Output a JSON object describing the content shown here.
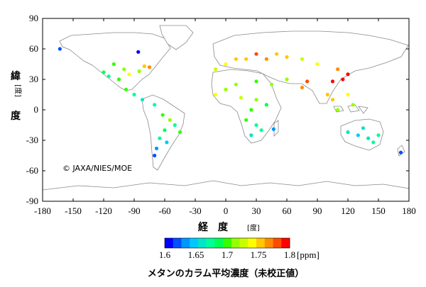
{
  "map": {
    "copyright": "© JAXA/NIES/MOE",
    "axes": {
      "x_title": "経　度",
      "x_unit": "[度]",
      "y_title_top": "緯",
      "y_unit": "[度]",
      "y_title_bottom": "度",
      "x_range": [
        -180,
        180
      ],
      "y_range": [
        -90,
        90
      ],
      "x_ticks": [
        -180,
        -150,
        -120,
        -90,
        -60,
        -30,
        0,
        30,
        60,
        90,
        120,
        150,
        180
      ],
      "y_ticks": [
        90,
        60,
        30,
        0,
        -30,
        -60,
        -90
      ]
    },
    "colorbar": {
      "ticks": [
        "1.6",
        "1.65",
        "1.7",
        "1.75",
        "1.8"
      ],
      "unit": "[ppm]",
      "min": 1.6,
      "max": 1.8,
      "colors": [
        "#0000ff",
        "#0050ff",
        "#0096ff",
        "#00c8ff",
        "#00e6c8",
        "#00ff96",
        "#00ff50",
        "#32ff00",
        "#96ff00",
        "#c8ff00",
        "#ffff00",
        "#ffc800",
        "#ff8c00",
        "#ff4b00",
        "#ff0000"
      ]
    },
    "caption": "メタンのカラム平均濃度（未校正値）"
  },
  "chart_data": {
    "type": "scatter",
    "xlabel": "経度 [度]",
    "ylabel": "緯度 [度]",
    "xlim": [
      -180,
      180
    ],
    "ylim": [
      -90,
      90
    ],
    "color_variable": "methane column-averaged concentration (ppm)",
    "points": [
      {
        "x": -163,
        "y": 60,
        "v": 1.62
      },
      {
        "x": -86,
        "y": 57,
        "v": 1.6
      },
      {
        "x": -110,
        "y": 45,
        "v": 1.7
      },
      {
        "x": -100,
        "y": 40,
        "v": 1.72
      },
      {
        "x": -95,
        "y": 35,
        "v": 1.74
      },
      {
        "x": -85,
        "y": 38,
        "v": 1.72
      },
      {
        "x": -80,
        "y": 43,
        "v": 1.76
      },
      {
        "x": -75,
        "y": 42,
        "v": 1.77
      },
      {
        "x": -120,
        "y": 37,
        "v": 1.69
      },
      {
        "x": -115,
        "y": 33,
        "v": 1.68
      },
      {
        "x": -105,
        "y": 30,
        "v": 1.7
      },
      {
        "x": -98,
        "y": 20,
        "v": 1.7
      },
      {
        "x": -90,
        "y": 15,
        "v": 1.68
      },
      {
        "x": -82,
        "y": 10,
        "v": 1.66
      },
      {
        "x": -70,
        "y": 5,
        "v": 1.67
      },
      {
        "x": -62,
        "y": -5,
        "v": 1.7
      },
      {
        "x": -55,
        "y": -10,
        "v": 1.72
      },
      {
        "x": -50,
        "y": -15,
        "v": 1.68
      },
      {
        "x": -60,
        "y": -20,
        "v": 1.69
      },
      {
        "x": -45,
        "y": -22,
        "v": 1.7
      },
      {
        "x": -65,
        "y": -28,
        "v": 1.67
      },
      {
        "x": -58,
        "y": -32,
        "v": 1.65
      },
      {
        "x": -68,
        "y": -38,
        "v": 1.64
      },
      {
        "x": -70,
        "y": -45,
        "v": 1.62
      },
      {
        "x": -10,
        "y": 40,
        "v": 1.73
      },
      {
        "x": 0,
        "y": 45,
        "v": 1.74
      },
      {
        "x": 10,
        "y": 50,
        "v": 1.76
      },
      {
        "x": 20,
        "y": 50,
        "v": 1.75
      },
      {
        "x": 30,
        "y": 55,
        "v": 1.78
      },
      {
        "x": 40,
        "y": 50,
        "v": 1.77
      },
      {
        "x": 50,
        "y": 55,
        "v": 1.76
      },
      {
        "x": 60,
        "y": 52,
        "v": 1.75
      },
      {
        "x": 75,
        "y": 50,
        "v": 1.73
      },
      {
        "x": 90,
        "y": 45,
        "v": 1.74
      },
      {
        "x": 110,
        "y": 40,
        "v": 1.77
      },
      {
        "x": 120,
        "y": 35,
        "v": 1.8
      },
      {
        "x": 115,
        "y": 30,
        "v": 1.8
      },
      {
        "x": 105,
        "y": 28,
        "v": 1.79
      },
      {
        "x": 80,
        "y": 28,
        "v": 1.78
      },
      {
        "x": 75,
        "y": 22,
        "v": 1.77
      },
      {
        "x": 60,
        "y": 30,
        "v": 1.72
      },
      {
        "x": 45,
        "y": 25,
        "v": 1.72
      },
      {
        "x": 30,
        "y": 28,
        "v": 1.7
      },
      {
        "x": 10,
        "y": 25,
        "v": 1.71
      },
      {
        "x": 0,
        "y": 20,
        "v": 1.72
      },
      {
        "x": -10,
        "y": 15,
        "v": 1.74
      },
      {
        "x": 15,
        "y": 12,
        "v": 1.73
      },
      {
        "x": 30,
        "y": 10,
        "v": 1.71
      },
      {
        "x": 40,
        "y": 5,
        "v": 1.69
      },
      {
        "x": 25,
        "y": 0,
        "v": 1.7
      },
      {
        "x": 20,
        "y": -10,
        "v": 1.7
      },
      {
        "x": 30,
        "y": -15,
        "v": 1.68
      },
      {
        "x": 25,
        "y": -25,
        "v": 1.66
      },
      {
        "x": 35,
        "y": -20,
        "v": 1.67
      },
      {
        "x": 47,
        "y": -19,
        "v": 1.64
      },
      {
        "x": 100,
        "y": 15,
        "v": 1.76
      },
      {
        "x": 105,
        "y": 10,
        "v": 1.75
      },
      {
        "x": 120,
        "y": 15,
        "v": 1.74
      },
      {
        "x": 125,
        "y": 5,
        "v": 1.72
      },
      {
        "x": 110,
        "y": 0,
        "v": 1.71
      },
      {
        "x": 120,
        "y": -22,
        "v": 1.66
      },
      {
        "x": 130,
        "y": -25,
        "v": 1.65
      },
      {
        "x": 140,
        "y": -28,
        "v": 1.66
      },
      {
        "x": 145,
        "y": -32,
        "v": 1.67
      },
      {
        "x": 135,
        "y": -18,
        "v": 1.66
      },
      {
        "x": 150,
        "y": -25,
        "v": 1.67
      },
      {
        "x": 172,
        "y": -42,
        "v": 1.62
      }
    ]
  }
}
